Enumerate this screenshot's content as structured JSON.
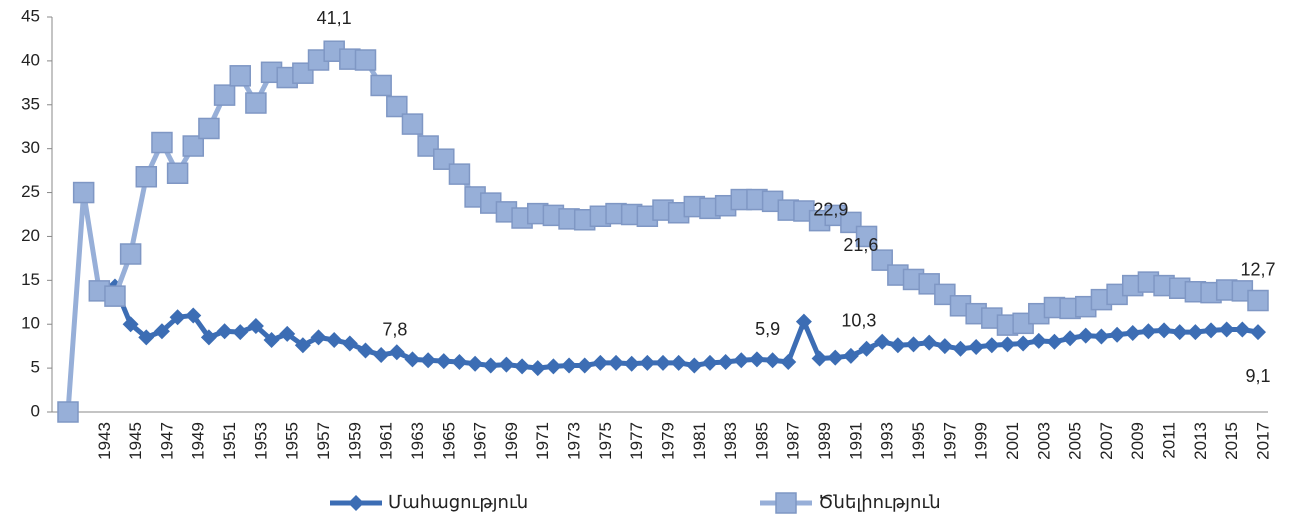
{
  "chart_data": {
    "type": "line",
    "categories": [
      null,
      null,
      "1943",
      null,
      "1945",
      null,
      "1947",
      null,
      "1949",
      null,
      "1951",
      null,
      "1953",
      null,
      "1955",
      null,
      "1957",
      null,
      "1959",
      null,
      "1961",
      null,
      "1963",
      null,
      "1965",
      null,
      "1967",
      null,
      "1969",
      null,
      "1971",
      null,
      "1973",
      null,
      "1975",
      null,
      "1977",
      null,
      "1979",
      null,
      "1981",
      null,
      "1983",
      null,
      "1985",
      null,
      "1987",
      null,
      "1989",
      null,
      "1991",
      null,
      "1993",
      null,
      "1995",
      null,
      "1997",
      null,
      "1999",
      null,
      "2001",
      null,
      "2003",
      null,
      "2005",
      null,
      "2007",
      null,
      "2009",
      null,
      "2011",
      null,
      "2013",
      null,
      "2015",
      null,
      "2017"
    ],
    "series": [
      {
        "name": "Մահացություն",
        "color": "#3c6db4",
        "marker": "diamond",
        "values": [
          null,
          null,
          null,
          14.3,
          10,
          8.5,
          9.2,
          10.8,
          11.0,
          8.5,
          9.2,
          9.1,
          9.8,
          8.2,
          8.9,
          7.6,
          8.5,
          8.2,
          7.8,
          7.0,
          6.5,
          6.8,
          6.0,
          5.9,
          5.8,
          5.7,
          5.5,
          5.3,
          5.4,
          5.2,
          5.0,
          5.2,
          5.3,
          5.3,
          5.6,
          5.6,
          5.5,
          5.6,
          5.6,
          5.6,
          5.3,
          5.6,
          5.7,
          5.9,
          6.0,
          5.9,
          5.7,
          10.3,
          6.1,
          6.2,
          6.4,
          7.2,
          8.0,
          7.6,
          7.7,
          7.9,
          7.5,
          7.2,
          7.4,
          7.6,
          7.7,
          7.8,
          8.1,
          8.0,
          8.4,
          8.7,
          8.6,
          8.8,
          9.0,
          9.2,
          9.3,
          9.1,
          9.1,
          9.3,
          9.4,
          9.4,
          9.1
        ],
        "value_labels": [
          null,
          null,
          null,
          null,
          null,
          null,
          null,
          null,
          null,
          null,
          null,
          null,
          null,
          null,
          null,
          null,
          null,
          null,
          "7,8",
          null,
          null,
          null,
          null,
          null,
          null,
          null,
          null,
          null,
          null,
          null,
          null,
          null,
          null,
          null,
          null,
          null,
          null,
          null,
          null,
          null,
          null,
          null,
          null,
          null,
          null,
          "5,9",
          null,
          "10,3",
          null,
          null,
          null,
          null,
          null,
          null,
          null,
          null,
          null,
          null,
          null,
          null,
          null,
          null,
          null,
          null,
          null,
          null,
          null,
          null,
          null,
          null,
          null,
          null,
          null,
          null,
          null,
          null,
          "9,1"
        ]
      },
      {
        "name": "Ծնելիություն",
        "color": "#97afd8",
        "marker": "square",
        "values": [
          0,
          25,
          13.8,
          13.2,
          18,
          26.8,
          30.7,
          27.2,
          30.3,
          32.3,
          36.1,
          38.3,
          35.2,
          38.7,
          38.1,
          38.6,
          40.1,
          41.1,
          40.2,
          40.1,
          37.2,
          34.8,
          32.8,
          30.3,
          28.8,
          27.1,
          24.5,
          23.8,
          22.8,
          22.1,
          22.6,
          22.4,
          22.0,
          21.9,
          22.3,
          22.6,
          22.5,
          22.3,
          23.0,
          22.7,
          23.4,
          23.2,
          23.5,
          24.2,
          24.2,
          24.0,
          23.0,
          22.9,
          21.8,
          22.4,
          21.6,
          20.0,
          17.3,
          15.6,
          15.1,
          14.6,
          13.4,
          12.1,
          11.2,
          10.7,
          9.9,
          10.1,
          11.2,
          11.9,
          11.8,
          12.0,
          12.8,
          13.4,
          14.4,
          14.8,
          14.4,
          14.1,
          13.7,
          13.6,
          13.9,
          13.8,
          12.7
        ],
        "value_labels": [
          null,
          null,
          null,
          null,
          null,
          null,
          null,
          null,
          null,
          null,
          null,
          null,
          null,
          null,
          null,
          null,
          null,
          "41,1",
          null,
          null,
          null,
          null,
          null,
          null,
          null,
          null,
          null,
          null,
          null,
          null,
          null,
          null,
          null,
          null,
          null,
          null,
          null,
          null,
          null,
          null,
          null,
          null,
          null,
          null,
          null,
          null,
          null,
          "22,9",
          null,
          null,
          "21,6",
          null,
          null,
          null,
          null,
          null,
          null,
          null,
          null,
          null,
          null,
          null,
          null,
          null,
          null,
          null,
          null,
          null,
          null,
          null,
          null,
          null,
          null,
          null,
          null,
          null,
          "12,7"
        ]
      }
    ],
    "ylim": [
      0,
      45
    ],
    "yticks": [
      0,
      5,
      10,
      15,
      20,
      25,
      30,
      35,
      40,
      45
    ],
    "legend": "bottom"
  }
}
